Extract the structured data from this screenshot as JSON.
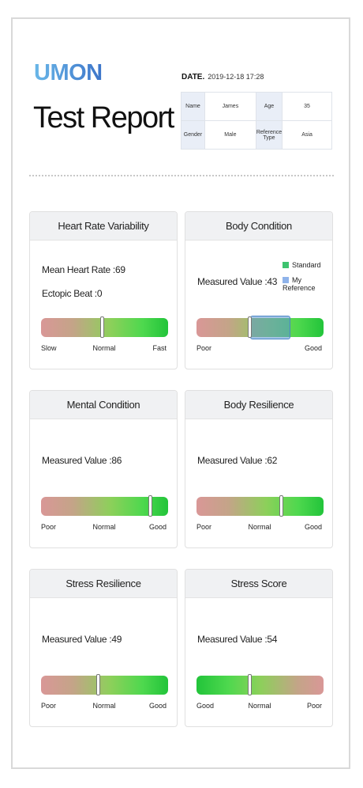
{
  "header": {
    "brand": "UMON",
    "title": "Test Report",
    "date_label": "DATE.",
    "date_value": "2019-12-18 17:28"
  },
  "info": {
    "name_label": "Name",
    "name_value": "James",
    "age_label": "Age",
    "age_value": "35",
    "gender_label": "Gender",
    "gender_value": "Male",
    "ref_label": "Reference Type",
    "ref_value": "Asia"
  },
  "cards": {
    "hrv": {
      "title": "Heart Rate Variability",
      "line1": "Mean Heart Rate :69",
      "line2": "Ectopic Beat :0",
      "left": "Slow",
      "mid": "Normal",
      "right": "Fast",
      "marker_level": 0.48
    },
    "body": {
      "title": "Body Condition",
      "line1": "Measured Value :43",
      "legend_standard": "Standard",
      "legend_reference": "My Reference",
      "left": "Poor",
      "right": "Good",
      "marker_level": 0.42,
      "reference_range": [
        0.42,
        0.74
      ],
      "colors": {
        "standard": "#3ec36f",
        "reference": "#8fb3ea"
      }
    },
    "mental": {
      "title": "Mental Condition",
      "line1": "Measured Value :86",
      "left": "Poor",
      "mid": "Normal",
      "right": "Good",
      "marker_level": 0.86
    },
    "resilience": {
      "title": "Body Resilience",
      "line1": "Measured Value :62",
      "left": "Poor",
      "mid": "Normal",
      "right": "Good",
      "marker_level": 0.67
    },
    "stress_res": {
      "title": "Stress Resilience",
      "line1": "Measured Value :49",
      "left": "Poor",
      "mid": "Normal",
      "right": "Good",
      "marker_level": 0.45
    },
    "stress_score": {
      "title": "Stress Score",
      "line1": "Measured Value :54",
      "left": "Good",
      "mid": "Normal",
      "right": "Poor",
      "marker_level": 0.42
    }
  }
}
